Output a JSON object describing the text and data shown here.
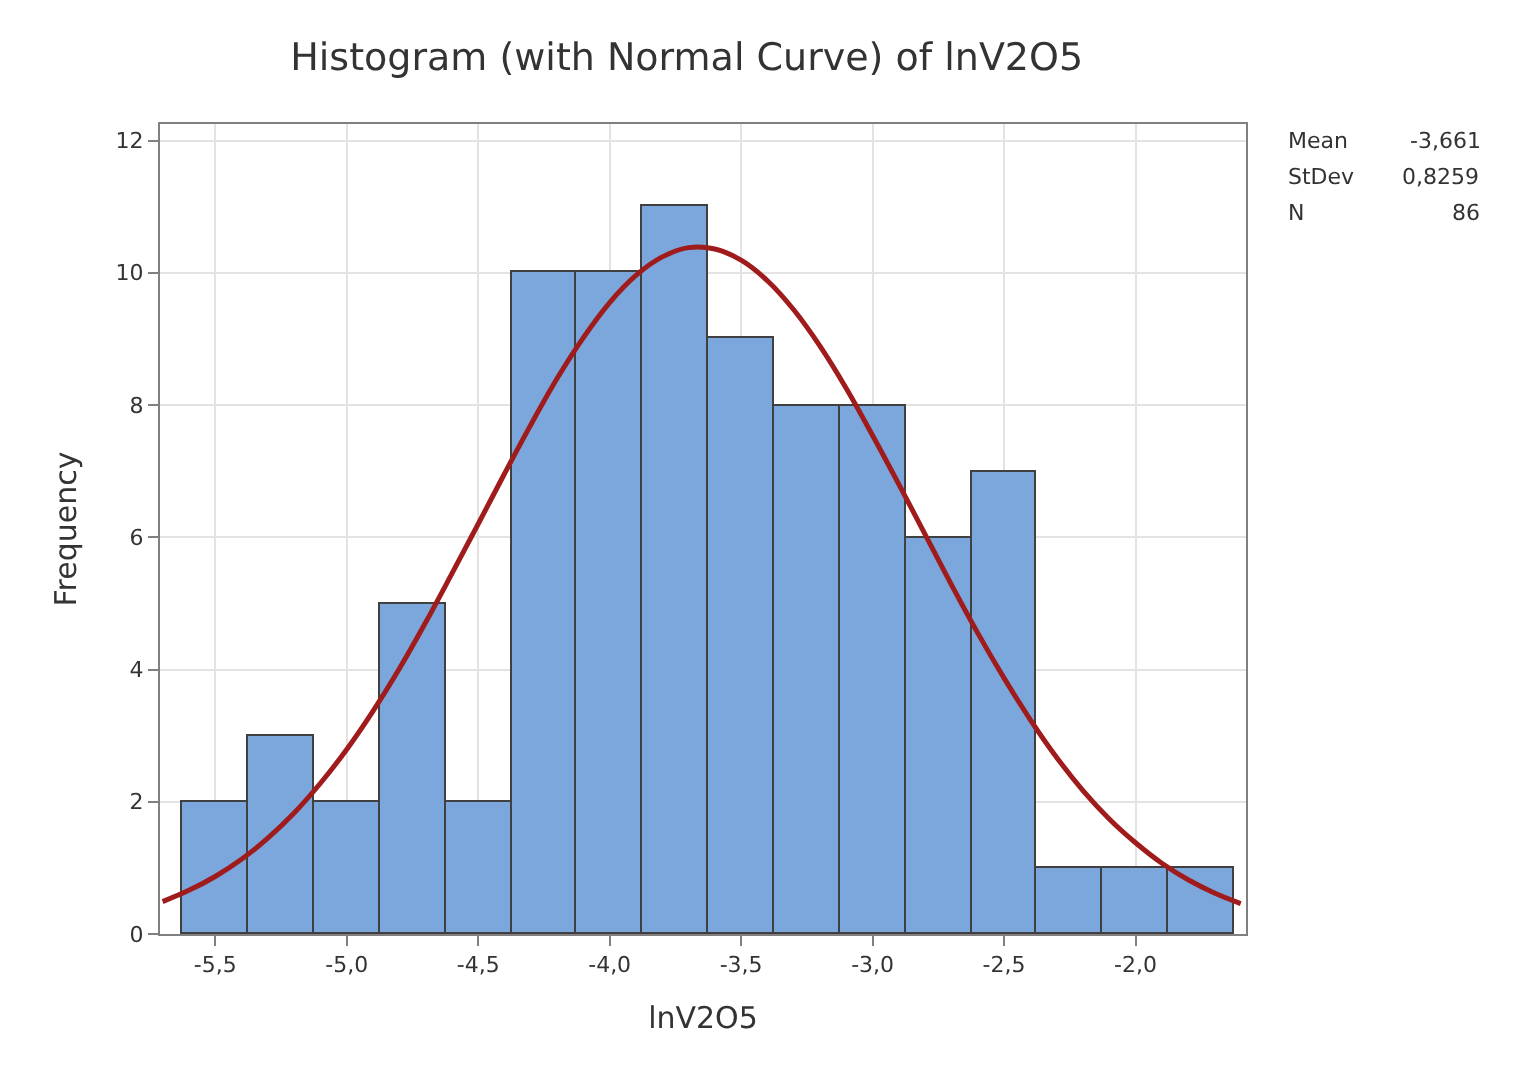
{
  "chart_data": [
    {
      "type": "histogram",
      "title": "Histogram (with Normal Curve) of lnV2O5",
      "xlabel": "lnV2O5",
      "ylabel": "Frequency",
      "bins": [
        -5.625,
        -5.375,
        -5.125,
        -4.875,
        -4.625,
        -4.375,
        -4.125,
        -3.875,
        -3.625,
        -3.375,
        -3.125,
        -2.875,
        -2.625,
        -2.375,
        -2.125,
        -1.875,
        -1.625
      ],
      "values": [
        2,
        3,
        2,
        5,
        2,
        10,
        10,
        11,
        9,
        8,
        8,
        6,
        7,
        1,
        1,
        1
      ],
      "color": "#7ba7dc",
      "series": [
        {
          "type": "line",
          "color": "#a01c1c",
          "x": [
            -5.7,
            -5.6,
            -5.5,
            -5.4,
            -5.3,
            -5.2,
            -5.1,
            -5.0,
            -4.9,
            -4.8,
            -4.7,
            -4.6,
            -4.5,
            -4.4,
            -4.3,
            -4.2,
            -4.1,
            -4.0,
            -3.9,
            -3.8,
            -3.7,
            -3.6,
            -3.5,
            -3.4,
            -3.3,
            -3.2,
            -3.1,
            -3.0,
            -2.9,
            -2.8,
            -2.7,
            -2.6,
            -2.5,
            -2.4,
            -2.3,
            -2.2,
            -2.1,
            -2.0,
            -1.9,
            -1.8,
            -1.7,
            -1.6
          ],
          "values": [
            0.49,
            0.66,
            0.87,
            1.13,
            1.45,
            1.83,
            2.28,
            2.79,
            3.37,
            4.01,
            4.71,
            5.45,
            6.2,
            6.96,
            7.7,
            8.4,
            9.02,
            9.55,
            9.96,
            10.24,
            10.38,
            10.36,
            10.19,
            9.88,
            9.44,
            8.89,
            8.25,
            7.54,
            6.8,
            6.04,
            5.28,
            4.55,
            3.87,
            3.24,
            2.67,
            2.17,
            1.74,
            1.38,
            1.07,
            0.82,
            0.62,
            0.46
          ]
        }
      ],
      "xlim": [
        -5.71,
        -1.58
      ],
      "xticks": [
        {
          "value": -5.5,
          "label": "-5,5"
        },
        {
          "value": -5.0,
          "label": "-5,0"
        },
        {
          "value": -4.5,
          "label": "-4,5"
        },
        {
          "value": -4.0,
          "label": "-4,0"
        },
        {
          "value": -3.5,
          "label": "-3,5"
        },
        {
          "value": -3.0,
          "label": "-3,0"
        },
        {
          "value": -2.5,
          "label": "-2,5"
        },
        {
          "value": -2.0,
          "label": "-2,0"
        }
      ],
      "ylim": [
        0,
        12.25
      ],
      "yticks": [
        0,
        2,
        4,
        6,
        8,
        10,
        12
      ],
      "grid": true,
      "marker": "none",
      "annotations": [
        "Mean -3,661",
        "StDev 0,8259",
        "N 86"
      ]
    }
  ]
}
